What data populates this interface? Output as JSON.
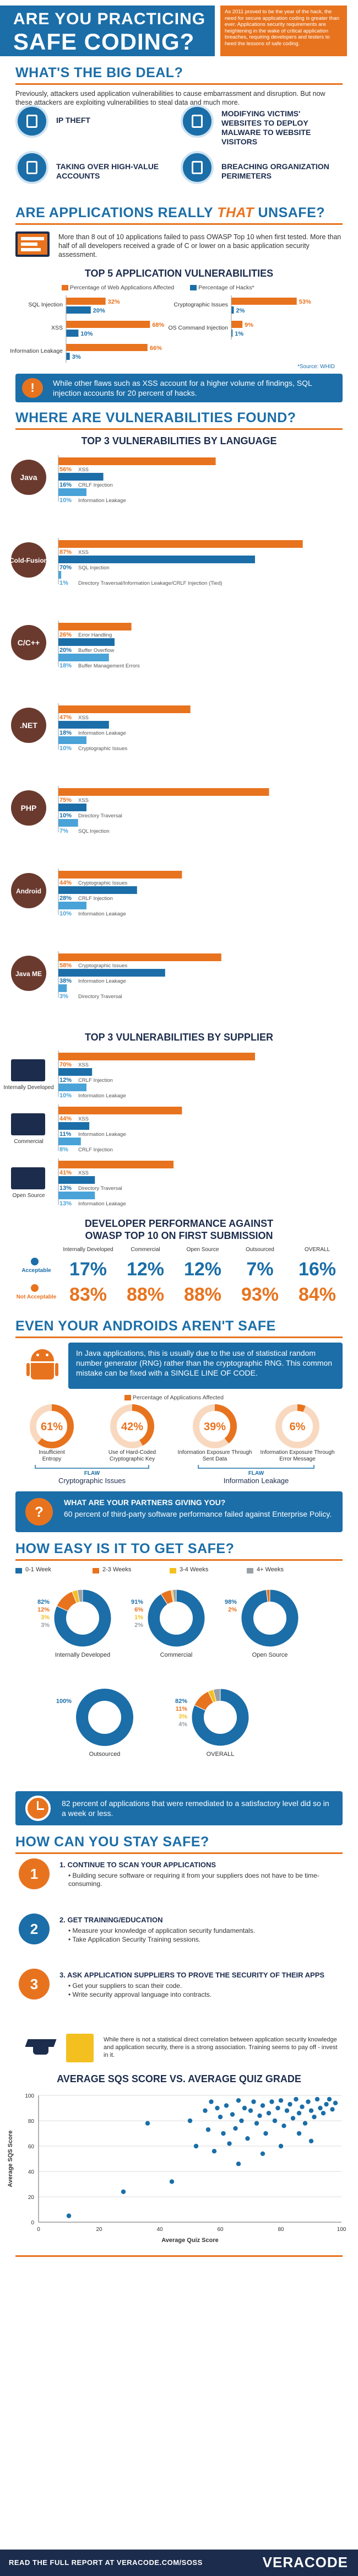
{
  "header": {
    "title_line1": "ARE YOU PRACTICING",
    "title_line2": "SAFE CODING?",
    "intro": "As 2011 proved to be the year of the hack, the need for secure application coding is greater than ever. Applications security requirements are heightening in the wake of critical application breaches, requiring developers and testers to heed the lessons of safe coding."
  },
  "big_deal": {
    "title": "WHAT'S THE BIG DEAL?",
    "text": "Previously, attackers used application vulnerabilities to cause embarrassment and disruption. But now these attackers are exploiting vulnerabilities to steal data and much more.",
    "items": [
      {
        "icon": "ip-theft-icon",
        "label": "IP THEFT"
      },
      {
        "icon": "malware-icon",
        "label": "MODIFYING VICTIMS' WEBSITES TO DEPLOY MALWARE TO WEBSITE VISITORS"
      },
      {
        "icon": "account-icon",
        "label": "TAKING OVER HIGH-VALUE ACCOUNTS"
      },
      {
        "icon": "perimeter-icon",
        "label": "BREACHING ORGANIZATION PERIMETERS"
      }
    ]
  },
  "unsafe": {
    "title_a": "ARE APPLICATIONS REALLY ",
    "title_b": "THAT",
    "title_c": " UNSAFE?",
    "text": "More than 8 out of 10 applications failed to pass OWASP Top 10 when first tested. More than half of all developers received a grade of C or lower on a basic application security assessment.",
    "vuln_title": "TOP 5 APPLICATION VULNERABILITIES",
    "legend_apps": "Percentage of Web Applications Affected",
    "legend_hacks": "Percentage of Hacks*",
    "left": [
      {
        "label": "SQL Injection",
        "apps": 32,
        "hacks": 20
      },
      {
        "label": "XSS",
        "apps": 68,
        "hacks": 10
      },
      {
        "label": "Information Leakage",
        "apps": 66,
        "hacks": 3
      }
    ],
    "right": [
      {
        "label": "Cryptographic Issues",
        "apps": 53,
        "hacks": 2
      },
      {
        "label": "OS Command Injection",
        "apps": 9,
        "hacks": 1
      }
    ],
    "source": "*Source: WHID",
    "callout": "While other flaws such as XSS account for a higher volume of findings, SQL injection accounts for 20 percent of hacks."
  },
  "where": {
    "title": "WHERE ARE VULNERABILITIES FOUND?",
    "lang_title": "TOP 3 VULNERABILITIES BY LANGUAGE",
    "languages": [
      {
        "name": "Java",
        "bars": [
          {
            "v": 56,
            "l": "XSS"
          },
          {
            "v": 16,
            "l": "CRLF Injection"
          },
          {
            "v": 10,
            "l": "Information Leakage"
          }
        ]
      },
      {
        "name": "Cold-Fusion",
        "bars": [
          {
            "v": 87,
            "l": "XSS"
          },
          {
            "v": 70,
            "l": "SQL Injection"
          },
          {
            "v": 1,
            "l": "Directory Traversal/Information Leakage/CRLF Injection (Tied)"
          }
        ]
      },
      {
        "name": "C/C++",
        "bars": [
          {
            "v": 26,
            "l": "Error Handling"
          },
          {
            "v": 20,
            "l": "Buffer Overflow"
          },
          {
            "v": 18,
            "l": "Buffer Management Errors"
          }
        ]
      },
      {
        "name": ".NET",
        "bars": [
          {
            "v": 47,
            "l": "XSS"
          },
          {
            "v": 18,
            "l": "Information Leakage"
          },
          {
            "v": 10,
            "l": "Cryptographic Issues"
          }
        ]
      },
      {
        "name": "PHP",
        "bars": [
          {
            "v": 75,
            "l": "XSS"
          },
          {
            "v": 10,
            "l": "Directory Traversal"
          },
          {
            "v": 7,
            "l": "SQL Injection"
          }
        ]
      },
      {
        "name": "Android",
        "bars": [
          {
            "v": 44,
            "l": "Cryptographic Issues"
          },
          {
            "v": 28,
            "l": "CRLF Injection"
          },
          {
            "v": 10,
            "l": "Information Leakage"
          }
        ]
      },
      {
        "name": "Java ME",
        "bars": [
          {
            "v": 58,
            "l": "Cryptographic Issues"
          },
          {
            "v": 38,
            "l": "Information Leakage"
          },
          {
            "v": 3,
            "l": "Directory Traversal"
          }
        ]
      }
    ],
    "supplier_title": "TOP 3 VULNERABILITIES BY SUPPLIER",
    "suppliers": [
      {
        "name": "Internally Developed",
        "bars": [
          {
            "v": 70,
            "l": "XSS"
          },
          {
            "v": 12,
            "l": "CRLF Injection"
          },
          {
            "v": 10,
            "l": "Information Leakage"
          }
        ]
      },
      {
        "name": "Commercial",
        "bars": [
          {
            "v": 44,
            "l": "XSS"
          },
          {
            "v": 11,
            "l": "Information Leakage"
          },
          {
            "v": 8,
            "l": "CRLF Injection"
          }
        ]
      },
      {
        "name": "Open Source",
        "bars": [
          {
            "v": 41,
            "l": "XSS"
          },
          {
            "v": 13,
            "l": "Directory Traversal"
          },
          {
            "v": 13,
            "l": "Information Leakage"
          }
        ]
      }
    ],
    "perf_title_1": "DEVELOPER PERFORMANCE AGAINST",
    "perf_title_2": "OWASP TOP 10 ON FIRST SUBMISSION",
    "perf_cols": [
      "Internally Developed",
      "Commercial",
      "Open Source",
      "Outsourced",
      "OVERALL"
    ],
    "acceptable_label": "Acceptable",
    "not_acceptable_label": "Not Acceptable",
    "acceptable": [
      "17%",
      "12%",
      "12%",
      "7%",
      "16%"
    ],
    "not_acceptable": [
      "83%",
      "88%",
      "88%",
      "93%",
      "84%"
    ]
  },
  "android": {
    "title": "EVEN YOUR ANDROIDS AREN'T SAFE",
    "callout": "In Java applications, this is usually due to the use of statistical random number generator (RNG) rather than the cryptographic RNG. This common mistake can be fixed with a SINGLE LINE OF CODE.",
    "legend": "Percentage of Applications Affected",
    "donuts": [
      {
        "pct": 61,
        "label": "61%",
        "name": "Insufficient Entropy"
      },
      {
        "pct": 42,
        "label": "42%",
        "name": "Use of Hard-Coded Cryptographic Key"
      },
      {
        "pct": 39,
        "label": "39%",
        "name": "Information Exposure Through Sent Data"
      },
      {
        "pct": 6,
        "label": "6%",
        "name": "Information Exposure Through Error Message"
      }
    ],
    "flaw_word": "FLAW",
    "flaw_a": "Cryptographic Issues",
    "flaw_b": "Information Leakage",
    "partners_title": "WHAT ARE YOUR PARTNERS GIVING YOU?",
    "partners_text": "60 percent of third-party software performance failed against Enterprise Policy."
  },
  "easy": {
    "title": "HOW EASY IS IT TO GET SAFE?",
    "legend": [
      "0-1 Week",
      "2-3 Weeks",
      "3-4 Weeks",
      "4+ Weeks"
    ],
    "colors": [
      "#1b6ea8",
      "#e8731e",
      "#f3c020",
      "#9aa0a6"
    ],
    "pies": [
      {
        "name": "Internally Developed",
        "values": [
          82,
          12,
          3,
          3
        ],
        "labels": [
          "82%",
          "12%",
          "3%",
          "3%"
        ]
      },
      {
        "name": "Commercial",
        "values": [
          91,
          6,
          1,
          2
        ],
        "labels": [
          "91%",
          "6%",
          "1%",
          "2%"
        ]
      },
      {
        "name": "Open Source",
        "values": [
          98,
          2,
          0,
          0
        ],
        "labels": [
          "98%",
          "2%"
        ]
      },
      {
        "name": "Outsourced",
        "values": [
          100,
          0,
          0,
          0
        ],
        "labels": [
          "100%"
        ]
      },
      {
        "name": "OVERALL",
        "values": [
          82,
          11,
          3,
          4
        ],
        "labels": [
          "82%",
          "11%",
          "3%",
          "4%"
        ]
      }
    ],
    "callout": "82 percent of applications that were remediated to a satisfactory level did so in a week or less."
  },
  "stay_safe": {
    "title": "HOW CAN YOU STAY SAFE?",
    "steps": [
      {
        "num": "1",
        "head": "1. CONTINUE TO SCAN YOUR APPLICATIONS",
        "bullets": [
          "Building secure software or requiring it from your suppliers does not have to be time-consuming."
        ]
      },
      {
        "num": "2",
        "head": "2. GET TRAINING/EDUCATION",
        "bullets": [
          "Measure your knowledge of application security fundamentals.",
          "Take Application Security Training sessions."
        ]
      },
      {
        "num": "3",
        "head": "3. ASK APPLICATION SUPPLIERS TO PROVE THE SECURITY OF THEIR APPS",
        "bullets": [
          "Get your suppliers to scan their code.",
          "Write security approval language into contracts."
        ]
      }
    ],
    "quiz_text": "While there is not a statistical direct correlation between application security knowledge and application security, there is a strong association. Training seems to pay off - invest in it.",
    "scatter_title": "AVERAGE SQS SCORE VS. AVERAGE QUIZ GRADE"
  },
  "chart_data": {
    "type": "scatter",
    "title": "AVERAGE SQS SCORE VS. AVERAGE QUIZ GRADE",
    "xlabel": "Average Quiz Score",
    "ylabel": "Average SQS Score",
    "xlim": [
      0,
      100
    ],
    "ylim": [
      0,
      100
    ],
    "xticks": [
      "0",
      "20",
      "40",
      "60",
      "80",
      "100"
    ],
    "yticks": [
      "0",
      "20",
      "40",
      "60",
      "80",
      "100"
    ],
    "points": [
      [
        10,
        5
      ],
      [
        28,
        24
      ],
      [
        36,
        78
      ],
      [
        44,
        32
      ],
      [
        50,
        80
      ],
      [
        52,
        60
      ],
      [
        55,
        88
      ],
      [
        56,
        73
      ],
      [
        57,
        95
      ],
      [
        58,
        56
      ],
      [
        59,
        90
      ],
      [
        60,
        83
      ],
      [
        61,
        70
      ],
      [
        62,
        92
      ],
      [
        63,
        62
      ],
      [
        64,
        85
      ],
      [
        65,
        74
      ],
      [
        66,
        96
      ],
      [
        67,
        80
      ],
      [
        68,
        90
      ],
      [
        69,
        66
      ],
      [
        70,
        88
      ],
      [
        71,
        95
      ],
      [
        72,
        78
      ],
      [
        73,
        84
      ],
      [
        74,
        92
      ],
      [
        75,
        70
      ],
      [
        76,
        86
      ],
      [
        77,
        95
      ],
      [
        78,
        80
      ],
      [
        79,
        90
      ],
      [
        80,
        96
      ],
      [
        81,
        76
      ],
      [
        82,
        88
      ],
      [
        83,
        93
      ],
      [
        84,
        82
      ],
      [
        85,
        97
      ],
      [
        86,
        86
      ],
      [
        87,
        91
      ],
      [
        88,
        78
      ],
      [
        89,
        95
      ],
      [
        90,
        88
      ],
      [
        91,
        83
      ],
      [
        92,
        97
      ],
      [
        93,
        90
      ],
      [
        94,
        86
      ],
      [
        95,
        93
      ],
      [
        96,
        97
      ],
      [
        97,
        89
      ],
      [
        98,
        94
      ],
      [
        66,
        46
      ],
      [
        74,
        54
      ],
      [
        80,
        60
      ],
      [
        86,
        70
      ],
      [
        90,
        64
      ]
    ]
  },
  "footer": {
    "text": "READ THE FULL REPORT AT VERACODE.COM/SOSS",
    "brand": "VERACODE"
  }
}
